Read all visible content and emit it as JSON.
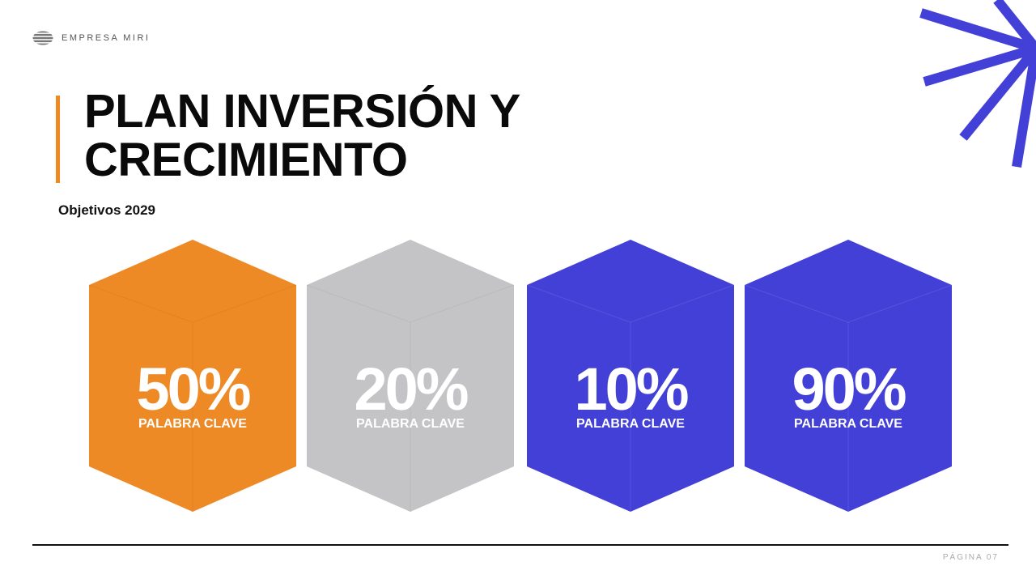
{
  "header": {
    "brand": "EMPRESA MIRI",
    "logo_icon": "striped-circle-icon"
  },
  "title": {
    "line1": "PLAN INVERSIÓN Y",
    "line2": "CRECIMIENTO"
  },
  "subtitle": "Objetivos 2029",
  "cubes": [
    {
      "value": "50%",
      "label": "PALABRA CLAVE",
      "color": "#ee8a26"
    },
    {
      "value": "20%",
      "label": "PALABRA CLAVE",
      "color": "#c4c4c6"
    },
    {
      "value": "10%",
      "label": "PALABRA CLAVE",
      "color": "#4340d8"
    },
    {
      "value": "90%",
      "label": "PALABRA CLAVE",
      "color": "#4340d8"
    }
  ],
  "footer": {
    "page": "PÁGINA 07"
  },
  "colors": {
    "accent_orange": "#ef8a23",
    "accent_blue": "#4340d8"
  },
  "decoration": {
    "burst_icon": "starburst-icon"
  }
}
